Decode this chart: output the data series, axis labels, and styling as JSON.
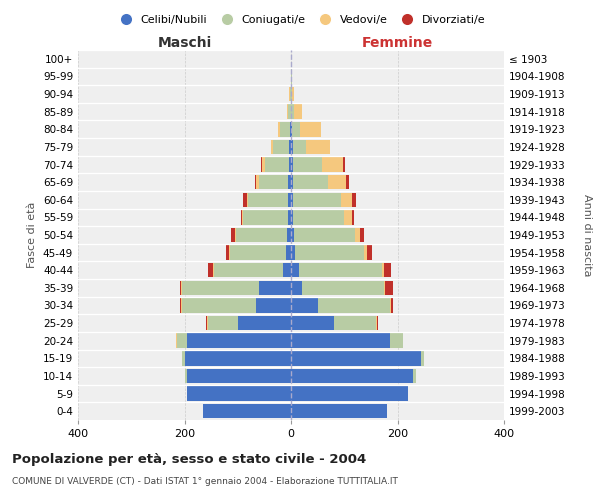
{
  "age_groups": [
    "0-4",
    "5-9",
    "10-14",
    "15-19",
    "20-24",
    "25-29",
    "30-34",
    "35-39",
    "40-44",
    "45-49",
    "50-54",
    "55-59",
    "60-64",
    "65-69",
    "70-74",
    "75-79",
    "80-84",
    "85-89",
    "90-94",
    "95-99",
    "100+"
  ],
  "birth_years": [
    "1999-2003",
    "1994-1998",
    "1989-1993",
    "1984-1988",
    "1979-1983",
    "1974-1978",
    "1969-1973",
    "1964-1968",
    "1959-1963",
    "1954-1958",
    "1949-1953",
    "1944-1948",
    "1939-1943",
    "1934-1938",
    "1929-1933",
    "1924-1928",
    "1919-1923",
    "1914-1918",
    "1909-1913",
    "1904-1908",
    "≤ 1903"
  ],
  "colors": {
    "celibi": "#4472c4",
    "coniugati": "#b8cca4",
    "vedovi": "#f5c87e",
    "divorziati": "#c0302a"
  },
  "maschi": {
    "celibi": [
      165,
      195,
      195,
      200,
      195,
      100,
      65,
      60,
      15,
      10,
      8,
      5,
      5,
      5,
      4,
      3,
      2,
      0,
      0,
      0,
      0
    ],
    "coniugati": [
      0,
      0,
      5,
      5,
      20,
      55,
      140,
      145,
      130,
      105,
      95,
      85,
      75,
      55,
      45,
      30,
      18,
      5,
      2,
      0,
      0
    ],
    "vedovi": [
      0,
      0,
      0,
      0,
      1,
      2,
      1,
      1,
      2,
      2,
      2,
      2,
      3,
      5,
      5,
      5,
      5,
      3,
      1,
      0,
      0
    ],
    "divorziati": [
      0,
      0,
      0,
      0,
      0,
      2,
      2,
      2,
      8,
      5,
      8,
      2,
      8,
      3,
      3,
      0,
      0,
      0,
      0,
      0,
      0
    ]
  },
  "femmine": {
    "celibi": [
      180,
      220,
      230,
      245,
      185,
      80,
      50,
      20,
      15,
      8,
      5,
      4,
      4,
      4,
      3,
      3,
      2,
      0,
      0,
      0,
      0
    ],
    "coniugati": [
      0,
      0,
      5,
      5,
      25,
      80,
      135,
      155,
      155,
      130,
      115,
      95,
      90,
      65,
      55,
      25,
      15,
      5,
      2,
      1,
      0
    ],
    "vedovi": [
      0,
      0,
      0,
      0,
      1,
      2,
      2,
      2,
      5,
      5,
      10,
      15,
      20,
      35,
      40,
      45,
      40,
      15,
      3,
      1,
      0
    ],
    "divorziati": [
      0,
      0,
      0,
      0,
      0,
      2,
      5,
      15,
      12,
      10,
      8,
      4,
      8,
      5,
      3,
      0,
      0,
      0,
      0,
      0,
      0
    ]
  },
  "xlim": 400,
  "title": "Popolazione per età, sesso e stato civile - 2004",
  "subtitle": "COMUNE DI VALVERDE (CT) - Dati ISTAT 1° gennaio 2004 - Elaborazione TUTTITALIA.IT",
  "xlabel_left": "Maschi",
  "xlabel_right": "Femmine",
  "ylabel_left": "Fasce di età",
  "ylabel_right": "Anni di nascita",
  "legend_labels": [
    "Celibi/Nubili",
    "Coniugati/e",
    "Vedovi/e",
    "Divorziati/e"
  ],
  "background_color": "#ffffff",
  "plot_bg": "#efefef"
}
